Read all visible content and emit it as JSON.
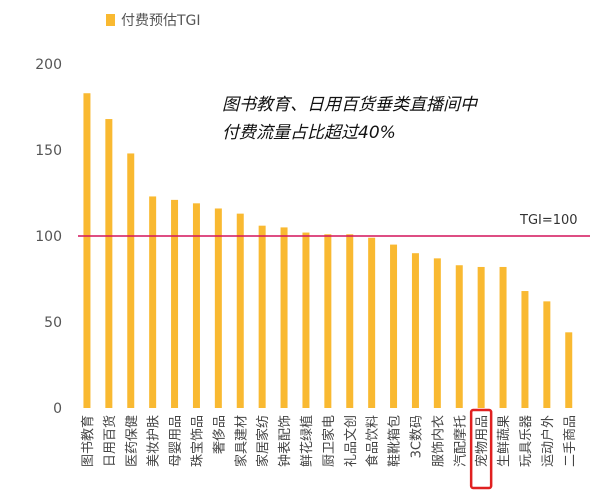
{
  "chart_data": {
    "type": "bar",
    "legend": {
      "label": "付费预估TGI",
      "position": "top-left"
    },
    "categories": [
      "图书教育",
      "日用百货",
      "医药保健",
      "美妆护肤",
      "母婴用品",
      "珠宝饰品",
      "奢侈品",
      "家具建材",
      "家居家纺",
      "钟表配饰",
      "鲜花绿植",
      "厨卫家电",
      "礼品文创",
      "食品饮料",
      "鞋靴箱包",
      "3C数码",
      "服饰内衣",
      "汽配摩托",
      "宠物用品",
      "生鲜蔬果",
      "玩具乐器",
      "运动户外",
      "二手商品"
    ],
    "series": [
      {
        "name": "付费预估TGI",
        "values": [
          183,
          168,
          148,
          123,
          121,
          119,
          116,
          113,
          106,
          105,
          102,
          101,
          101,
          99,
          95,
          90,
          87,
          83,
          82,
          82,
          68,
          62,
          44
        ]
      }
    ],
    "ylim": [
      0,
      200
    ],
    "yticks": [
      0,
      50,
      100,
      150,
      200
    ],
    "reference_line": {
      "value": 100,
      "label": "TGI=100"
    },
    "annotation": {
      "line1": "图书教育、日用百货垂类直播间中",
      "line2": "付费流量占比超过40%"
    },
    "highlight_category": "宠物用品",
    "grid": false
  },
  "colors": {
    "bar": "#F9B931",
    "reference_line": "#D4145A",
    "highlight_box": "#E02020",
    "axis_text": "#555555"
  }
}
